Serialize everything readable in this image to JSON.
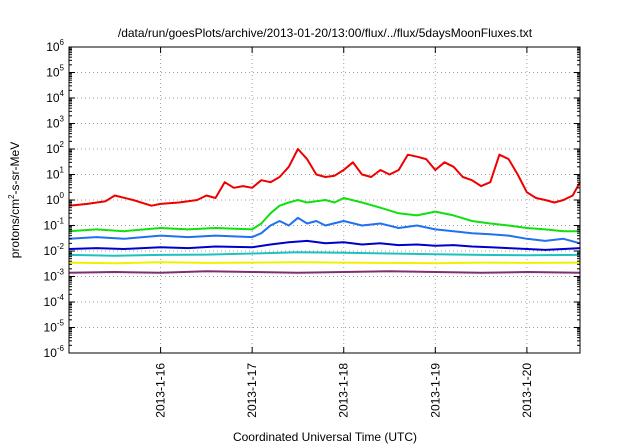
{
  "chart_data": {
    "type": "line",
    "title": "/data/run/goesPlots/archive/2013-01-20/13:00/flux/../flux/5daysMoonFluxes.txt",
    "xlabel": "Coordinated Universal Time (UTC)",
    "ylabel_parts": [
      "protons/cm",
      "2",
      "-s-sr-MeV"
    ],
    "yscale": "log",
    "xlim": [
      15.0,
      20.58
    ],
    "ylim_exp": [
      -6,
      6
    ],
    "grid": true,
    "y_ticks": [
      {
        "base": "10",
        "exp": "-6",
        "e": -6
      },
      {
        "base": "10",
        "exp": "-5",
        "e": -5
      },
      {
        "base": "10",
        "exp": "-4",
        "e": -4
      },
      {
        "base": "10",
        "exp": "-3",
        "e": -3
      },
      {
        "base": "10",
        "exp": "-2",
        "e": -2
      },
      {
        "base": "10",
        "exp": "-1",
        "e": -1
      },
      {
        "base": "10",
        "exp": "0",
        "e": 0
      },
      {
        "base": "10",
        "exp": "1",
        "e": 1
      },
      {
        "base": "10",
        "exp": "2",
        "e": 2
      },
      {
        "base": "10",
        "exp": "3",
        "e": 3
      },
      {
        "base": "10",
        "exp": "4",
        "e": 4
      },
      {
        "base": "10",
        "exp": "5",
        "e": 5
      },
      {
        "base": "10",
        "exp": "6",
        "e": 6
      }
    ],
    "x_ticks": [
      {
        "label": "2013-1-16",
        "x": 16
      },
      {
        "label": "2013-1-17",
        "x": 17
      },
      {
        "label": "2013-1-18",
        "x": 18
      },
      {
        "label": "2013-1-19",
        "x": 19
      },
      {
        "label": "2013-1-20",
        "x": 20
      }
    ],
    "series": [
      {
        "color": "#7f2f6f",
        "x": [
          15,
          15.5,
          16,
          16.5,
          17,
          17.5,
          18,
          18.5,
          19,
          19.5,
          20,
          20.58
        ],
        "y": [
          0.0014,
          0.0015,
          0.0014,
          0.0016,
          0.0015,
          0.0014,
          0.0015,
          0.0016,
          0.0015,
          0.0014,
          0.0015,
          0.0014
        ]
      },
      {
        "color": "#f0f000",
        "x": [
          15,
          15.5,
          16,
          16.5,
          17,
          17.5,
          18,
          18.5,
          19,
          19.5,
          20,
          20.58
        ],
        "y": [
          0.0035,
          0.0033,
          0.0036,
          0.0034,
          0.0035,
          0.0036,
          0.0035,
          0.0034,
          0.0033,
          0.0035,
          0.0034,
          0.0035
        ]
      },
      {
        "color": "#20c0c0",
        "x": [
          15,
          15.5,
          16,
          16.5,
          17,
          17.5,
          18,
          18.5,
          19,
          19.5,
          20,
          20.58
        ],
        "y": [
          0.007,
          0.0065,
          0.007,
          0.0072,
          0.008,
          0.009,
          0.0085,
          0.008,
          0.0075,
          0.007,
          0.0068,
          0.007
        ]
      },
      {
        "color": "#0000cc",
        "x": [
          15,
          15.3,
          15.6,
          16,
          16.3,
          16.6,
          17,
          17.2,
          17.4,
          17.6,
          17.8,
          18,
          18.2,
          18.4,
          18.6,
          18.8,
          19,
          19.2,
          19.4,
          19.6,
          19.8,
          20,
          20.2,
          20.4,
          20.58
        ],
        "y": [
          0.012,
          0.013,
          0.012,
          0.014,
          0.013,
          0.015,
          0.014,
          0.018,
          0.022,
          0.025,
          0.02,
          0.022,
          0.018,
          0.02,
          0.017,
          0.018,
          0.016,
          0.017,
          0.015,
          0.014,
          0.013,
          0.012,
          0.011,
          0.012,
          0.013
        ]
      },
      {
        "color": "#2070f0",
        "x": [
          15,
          15.3,
          15.6,
          16,
          16.3,
          16.6,
          17,
          17.1,
          17.2,
          17.3,
          17.4,
          17.5,
          17.6,
          17.7,
          17.8,
          18,
          18.2,
          18.4,
          18.6,
          18.8,
          19,
          19.2,
          19.4,
          19.6,
          19.8,
          20,
          20.2,
          20.4,
          20.58
        ],
        "y": [
          0.03,
          0.035,
          0.03,
          0.04,
          0.035,
          0.04,
          0.035,
          0.05,
          0.1,
          0.15,
          0.1,
          0.2,
          0.12,
          0.15,
          0.1,
          0.15,
          0.1,
          0.12,
          0.08,
          0.1,
          0.07,
          0.06,
          0.05,
          0.045,
          0.04,
          0.03,
          0.025,
          0.03,
          0.02
        ]
      },
      {
        "color": "#10e010",
        "x": [
          15,
          15.3,
          15.6,
          16,
          16.3,
          16.6,
          17,
          17.1,
          17.2,
          17.3,
          17.4,
          17.5,
          17.6,
          17.7,
          17.8,
          17.9,
          18,
          18.2,
          18.4,
          18.6,
          18.8,
          19,
          19.2,
          19.4,
          19.6,
          19.8,
          20,
          20.2,
          20.4,
          20.58
        ],
        "y": [
          0.06,
          0.07,
          0.06,
          0.08,
          0.07,
          0.08,
          0.07,
          0.12,
          0.3,
          0.6,
          0.8,
          1.0,
          0.8,
          0.9,
          1.0,
          0.8,
          1.2,
          0.8,
          0.5,
          0.3,
          0.25,
          0.35,
          0.25,
          0.15,
          0.12,
          0.1,
          0.08,
          0.07,
          0.06,
          0.06
        ]
      },
      {
        "color": "#ee0000",
        "x": [
          15,
          15.2,
          15.4,
          15.5,
          15.7,
          15.9,
          16,
          16.2,
          16.4,
          16.5,
          16.6,
          16.7,
          16.8,
          16.9,
          17,
          17.1,
          17.2,
          17.3,
          17.4,
          17.5,
          17.6,
          17.7,
          17.8,
          17.9,
          18,
          18.1,
          18.2,
          18.3,
          18.4,
          18.5,
          18.6,
          18.7,
          18.8,
          18.9,
          19,
          19.1,
          19.2,
          19.3,
          19.4,
          19.5,
          19.6,
          19.7,
          19.8,
          19.9,
          20,
          20.1,
          20.2,
          20.3,
          20.4,
          20.5,
          20.58
        ],
        "y": [
          0.6,
          0.7,
          0.9,
          1.5,
          1.0,
          0.6,
          0.7,
          0.8,
          1.0,
          1.5,
          1.2,
          5,
          3,
          3.5,
          3,
          6,
          5,
          8,
          20,
          100,
          40,
          10,
          8,
          9,
          15,
          30,
          10,
          8,
          15,
          10,
          15,
          60,
          50,
          40,
          15,
          30,
          20,
          8,
          6,
          3.5,
          5,
          60,
          40,
          10,
          2,
          1.2,
          1.0,
          0.8,
          1.0,
          1.5,
          5
        ]
      }
    ]
  }
}
